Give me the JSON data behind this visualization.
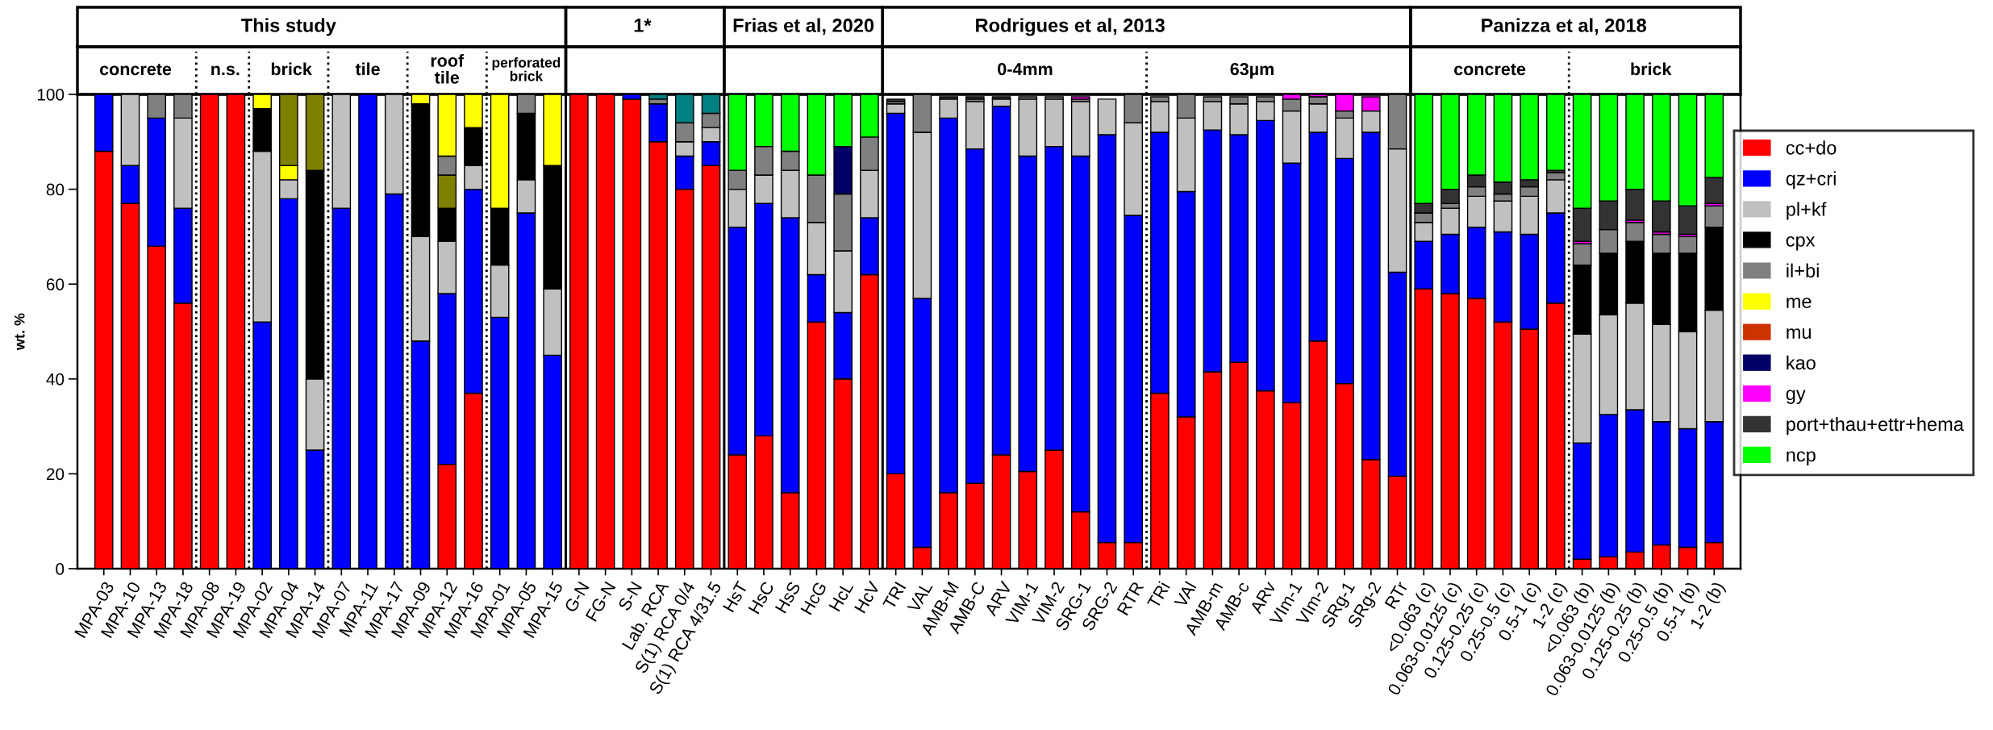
{
  "chart_data": {
    "type": "bar",
    "stacked": true,
    "ylabel": "wt. %",
    "ylim": [
      0,
      100
    ],
    "yticks": [
      0,
      20,
      40,
      60,
      80,
      100
    ],
    "legend": "right",
    "categories": [
      "MPA-03",
      "MPA-10",
      "MPA-13",
      "MPA-18",
      "MPA-08",
      "MPA-19",
      "MPA-02",
      "MPA-04",
      "MPA-14",
      "MPA-07",
      "MPA-11",
      "MPA-17",
      "MPA-09",
      "MPA-12",
      "MPA-16",
      "MPA-01",
      "MPA-05",
      "MPA-15",
      "G-N",
      "FG-N",
      "S-N",
      "Lab. RCA",
      "S(1) RCA 0/4",
      "S(1) RCA 4/31.5",
      "HsT",
      "HsC",
      "HsS",
      "HcG",
      "HcL",
      "HcV",
      "TRI",
      "VAL",
      "AMB-M",
      "AMB-C",
      "ARV",
      "VIM-1",
      "VIM-2",
      "SRG-1",
      "SRG-2",
      "RTR",
      "TRi",
      "VAl",
      "AMB-m",
      "AMB-c",
      "ARv",
      "VIm-1",
      "VIm-2",
      "SRg-1",
      "SRg-2",
      "RTr",
      "<0.063 (c)",
      "0.063-0.0125 (c)",
      "0.125-0.25 (c)",
      "0.25-0.5 (c)",
      "0.5-1 (c)",
      "1-2 (c)",
      "<0.063 (b)",
      "0.063-0.0125 (b)",
      "0.125-0.25 (b)",
      "0.25-0.5 (b)",
      "0.5-1 (b)",
      "1-2 (b)"
    ],
    "series": [
      {
        "name": "cc+do",
        "color": "#ff0000",
        "values": [
          88,
          77,
          68,
          56,
          100,
          100,
          null,
          null,
          null,
          null,
          null,
          null,
          null,
          22,
          37,
          null,
          null,
          null,
          100,
          100,
          99,
          90,
          80,
          85,
          24,
          28,
          16,
          52,
          40,
          62,
          20,
          4.5,
          16,
          18,
          24,
          20.5,
          25,
          12,
          5.5,
          5.5,
          37,
          32,
          41.5,
          43.5,
          37.5,
          35,
          48,
          39,
          23,
          19.5,
          59,
          58,
          57,
          52,
          50.5,
          56,
          2,
          2.5,
          3.5,
          5,
          4.5,
          5.5
        ]
      },
      {
        "name": "qz+cri",
        "color": "#0000ff",
        "values": [
          12,
          8,
          27,
          20,
          null,
          null,
          52,
          78,
          25,
          76,
          100,
          79,
          48,
          36,
          43,
          53,
          75,
          45,
          null,
          null,
          1,
          8,
          7,
          5,
          48,
          49,
          58,
          10,
          14,
          12,
          76,
          52.5,
          79,
          70.5,
          73.5,
          66.5,
          64,
          75,
          86,
          69,
          55,
          47.5,
          51,
          48,
          57,
          50.5,
          44,
          47.5,
          69,
          43,
          10,
          12.5,
          15,
          19,
          20,
          19,
          24.5,
          30,
          30,
          26,
          25,
          25.5
        ]
      },
      {
        "name": "pl+kf",
        "color": "#c0c0c0",
        "values": [
          null,
          15,
          null,
          19,
          null,
          null,
          36,
          4,
          15,
          24,
          null,
          21,
          22,
          11,
          5,
          11,
          7,
          14,
          null,
          null,
          null,
          null,
          3,
          3,
          8,
          6,
          10,
          11,
          13,
          10,
          2,
          35,
          4,
          10,
          1.5,
          12,
          10,
          11.5,
          7.5,
          19.5,
          6.5,
          15.5,
          6,
          6.5,
          4,
          11,
          6,
          8.5,
          4.5,
          26,
          4,
          5.5,
          6.5,
          6.5,
          8,
          7,
          23,
          21,
          22.5,
          20.5,
          20.5,
          23.5
        ]
      },
      {
        "name": "cpx",
        "color": "#000000",
        "values": [
          null,
          null,
          null,
          null,
          null,
          null,
          9,
          null,
          44,
          null,
          null,
          null,
          28,
          7,
          8,
          12,
          14,
          26,
          null,
          null,
          null,
          null,
          null,
          null,
          null,
          null,
          null,
          null,
          null,
          null,
          null,
          null,
          null,
          null,
          null,
          null,
          null,
          null,
          null,
          null,
          null,
          null,
          null,
          null,
          null,
          null,
          null,
          null,
          null,
          null,
          null,
          null,
          null,
          null,
          null,
          null,
          14.5,
          13,
          13,
          15,
          16.5,
          17.5
        ]
      },
      {
        "color": "#808000",
        "values": [
          null,
          null,
          null,
          null,
          null,
          null,
          null,
          null,
          16,
          null,
          null,
          null,
          null,
          7,
          null,
          null,
          null,
          null,
          null,
          null,
          null,
          null,
          null,
          null,
          null,
          null,
          null,
          null,
          null,
          null,
          null,
          null,
          null,
          null,
          null,
          null,
          null,
          null,
          null,
          null,
          null,
          null,
          null,
          null,
          null,
          null,
          null,
          null,
          null,
          null,
          null,
          null,
          null,
          null,
          null,
          null,
          null,
          null,
          null,
          null,
          null,
          null
        ]
      },
      {
        "name": "il+bi",
        "color": "#808080",
        "values": [
          null,
          null,
          5,
          5,
          null,
          null,
          null,
          null,
          null,
          null,
          null,
          null,
          null,
          4,
          null,
          null,
          4,
          null,
          null,
          null,
          null,
          1,
          4,
          3,
          4,
          6,
          4,
          10,
          12,
          7,
          0.5,
          8,
          null,
          0.5,
          null,
          0.5,
          0.5,
          0.5,
          null,
          6,
          1,
          5,
          1,
          1.5,
          1,
          2.5,
          1.5,
          1.5,
          null,
          11.5,
          2,
          1,
          2,
          1.5,
          2,
          1.5,
          4.5,
          5,
          4,
          4,
          3.5,
          4.5
        ]
      },
      {
        "name": "me",
        "color": "#ffff00",
        "values": [
          null,
          null,
          null,
          null,
          null,
          null,
          3,
          3,
          null,
          null,
          null,
          null,
          2,
          13,
          7,
          24,
          null,
          15,
          null,
          null,
          null,
          null,
          null,
          null,
          null,
          null,
          null,
          null,
          null,
          null,
          null,
          null,
          null,
          null,
          null,
          null,
          null,
          null,
          null,
          null,
          null,
          null,
          null,
          null,
          null,
          null,
          null,
          null,
          null,
          null,
          null,
          null,
          null,
          null,
          null,
          null,
          null,
          null,
          null,
          null,
          null,
          null
        ]
      },
      {
        "color": "#808000",
        "values": [
          null,
          null,
          null,
          null,
          null,
          null,
          null,
          15,
          null,
          null,
          null,
          null,
          null,
          null,
          null,
          null,
          null,
          null,
          null,
          null,
          null,
          null,
          null,
          null,
          null,
          null,
          null,
          null,
          null,
          null,
          null,
          null,
          null,
          null,
          null,
          null,
          null,
          null,
          null,
          null,
          null,
          null,
          null,
          null,
          null,
          null,
          null,
          null,
          null,
          null,
          null,
          null,
          null,
          null,
          null,
          null,
          null,
          null,
          null,
          null,
          null,
          null
        ]
      },
      {
        "name": "mu",
        "color": "#cc3300",
        "values": [
          null,
          null,
          null,
          null,
          null,
          null,
          null,
          null,
          null,
          null,
          null,
          null,
          null,
          null,
          null,
          null,
          null,
          null,
          null,
          null,
          null,
          null,
          null,
          null,
          null,
          null,
          null,
          null,
          null,
          null,
          null,
          null,
          null,
          null,
          null,
          null,
          null,
          null,
          null,
          null,
          null,
          null,
          null,
          null,
          null,
          null,
          null,
          null,
          null,
          null,
          null,
          null,
          null,
          null,
          null,
          null,
          null,
          null,
          null,
          null,
          null,
          null
        ]
      },
      {
        "name": "kao",
        "color": "#000066",
        "values": [
          null,
          null,
          null,
          null,
          null,
          null,
          null,
          null,
          null,
          null,
          null,
          null,
          null,
          null,
          null,
          null,
          null,
          null,
          null,
          null,
          null,
          null,
          null,
          null,
          null,
          null,
          null,
          null,
          10,
          null,
          null,
          null,
          null,
          null,
          null,
          null,
          null,
          null,
          null,
          null,
          null,
          null,
          null,
          null,
          null,
          null,
          null,
          null,
          null,
          null,
          null,
          null,
          null,
          null,
          null,
          null,
          null,
          null,
          null,
          null,
          null,
          null
        ]
      },
      {
        "name": "gy",
        "color": "#ff00ff",
        "values": [
          null,
          null,
          null,
          null,
          null,
          null,
          null,
          null,
          null,
          null,
          null,
          null,
          null,
          null,
          null,
          null,
          null,
          null,
          null,
          null,
          null,
          null,
          null,
          null,
          null,
          null,
          null,
          null,
          null,
          null,
          null,
          null,
          null,
          null,
          null,
          null,
          null,
          0.5,
          null,
          null,
          null,
          null,
          null,
          null,
          null,
          1,
          0.5,
          3.5,
          3,
          null,
          null,
          null,
          null,
          null,
          null,
          null,
          0.5,
          null,
          0.5,
          0.5,
          0.5,
          0.5
        ]
      },
      {
        "color": "#008080",
        "values": [
          null,
          null,
          null,
          null,
          null,
          null,
          null,
          null,
          null,
          null,
          null,
          null,
          null,
          null,
          null,
          null,
          null,
          null,
          null,
          null,
          null,
          1,
          6,
          4,
          null,
          null,
          null,
          null,
          null,
          null,
          null,
          null,
          null,
          null,
          null,
          null,
          null,
          null,
          null,
          null,
          null,
          null,
          null,
          null,
          null,
          null,
          null,
          null,
          null,
          null,
          null,
          null,
          null,
          null,
          null,
          null,
          null,
          null,
          null,
          null,
          null,
          null
        ]
      },
      {
        "name": "port+thau+ettr+hema",
        "color": "#333333",
        "values": [
          null,
          null,
          null,
          null,
          null,
          null,
          null,
          null,
          null,
          null,
          null,
          null,
          null,
          null,
          null,
          null,
          null,
          null,
          null,
          null,
          null,
          null,
          null,
          null,
          null,
          null,
          null,
          null,
          null,
          null,
          0.5,
          null,
          0.5,
          0.5,
          0.5,
          null,
          null,
          null,
          null,
          null,
          null,
          null,
          null,
          null,
          null,
          null,
          null,
          null,
          null,
          null,
          2,
          3,
          2.5,
          2.5,
          1.5,
          0.5,
          7,
          6,
          6.5,
          6.5,
          6,
          5.5
        ]
      },
      {
        "name": "ncp",
        "color": "#00ff00",
        "values": [
          null,
          null,
          null,
          null,
          null,
          null,
          null,
          null,
          null,
          null,
          null,
          null,
          null,
          null,
          null,
          null,
          null,
          null,
          null,
          null,
          null,
          null,
          null,
          null,
          16,
          11,
          12,
          17,
          11,
          9,
          null,
          null,
          null,
          null,
          null,
          null,
          null,
          null,
          null,
          null,
          null,
          null,
          null,
          null,
          null,
          null,
          null,
          null,
          null,
          null,
          23,
          20,
          17,
          18.5,
          18,
          16,
          24,
          22.5,
          20,
          22.5,
          23.5,
          17.5
        ]
      }
    ],
    "annotations": [
      "This study",
      "1*",
      "Frias et al, 2020",
      "Rodrigues et al, 2013",
      "Panizza et al, 2018",
      "concrete",
      "n.s.",
      "brick",
      "tile",
      "roof tile",
      "perforated brick",
      "0-4mm",
      "63µm",
      "concrete",
      "brick"
    ]
  }
}
